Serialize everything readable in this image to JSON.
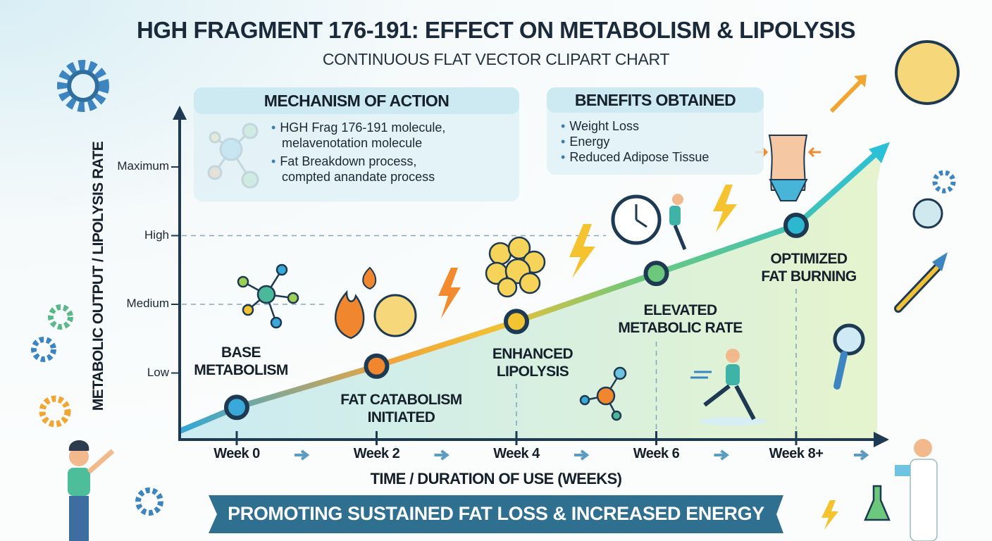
{
  "title": "HGH FRAGMENT 176-191: EFFECT ON METABOLISM & LIPOLYSIS",
  "subtitle": "CONTINUOUS FLAT VECTOR CLIPART CHART",
  "mechanism": {
    "heading": "MECHANISM OF ACTION",
    "bullets": [
      [
        "HGH Frag 176-191 molecule,",
        "melavenotation molecule"
      ],
      [
        "Fat Breakdown process,",
        "compted anandate process"
      ]
    ]
  },
  "benefits": {
    "heading": "BENEFITS OBTAINED",
    "bullets": [
      "Weight Loss",
      "Energy",
      "Reduced Adipose Tissue"
    ]
  },
  "banner": "PROMOTING SUSTAINED FAT LOSS & INCREASED ENERGY",
  "colors": {
    "axis": "#1d3a52",
    "banner": "#2f6f8f",
    "line_start": "#2fa8d8",
    "line_mid": "#f2b233",
    "line_green": "#6cc87a",
    "line_end": "#2cc0d8"
  },
  "icons": [
    "gear-icon",
    "molecule-icon",
    "flame-icon",
    "fat-cell-icon",
    "lightning-icon",
    "fat-cluster-icon",
    "stopwatch-runner-icon",
    "waist-icon",
    "runner-icon",
    "magnifier-icon",
    "syringe-icon",
    "flask-icon",
    "person-pointing-icon",
    "doctor-icon",
    "trend-arrow-icon"
  ],
  "chart_data": {
    "type": "line",
    "title": "HGH FRAGMENT 176-191: EFFECT ON METABOLISM & LIPOLYSIS",
    "xlabel": "TIME / DURATION OF USE (WEEKS)",
    "ylabel": "METABOLIC OUTPUT / LIPOLYSIS RATE",
    "x_tick_labels": [
      "Week 0",
      "Week 2",
      "Week 4",
      "Week 6",
      "Week 8+"
    ],
    "x": [
      0,
      2,
      4,
      6,
      8
    ],
    "y_tick_labels": [
      "Low",
      "Medium",
      "High",
      "Maximum"
    ],
    "y_tick_values": [
      1,
      2,
      3,
      4
    ],
    "ylim": [
      0,
      4.4
    ],
    "series": [
      {
        "values": [
          0.5,
          1.1,
          1.75,
          2.45,
          3.15
        ]
      }
    ],
    "stages": [
      {
        "week": 0,
        "label": [
          "BASE",
          "METABOLISM"
        ],
        "color": "#3aa9da"
      },
      {
        "week": 2,
        "label": [
          "FAT CATABOLISM",
          "INITIATED"
        ],
        "color": "#f0862e"
      },
      {
        "week": 4,
        "label": [
          "ENHANCED",
          "LIPOLYSIS"
        ],
        "color": "#f3c431"
      },
      {
        "week": 6,
        "label": [
          "ELEVATED",
          "METABOLIC RATE"
        ],
        "color": "#6cc87a"
      },
      {
        "week": 8,
        "label": [
          "OPTIMIZED",
          "FAT BURNING"
        ],
        "color": "#2cb8d0"
      }
    ],
    "grid": "dashed reference lines at Medium and High",
    "legend": "none"
  }
}
